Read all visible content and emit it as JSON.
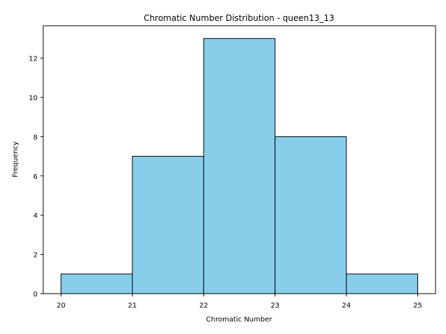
{
  "chart_data": {
    "type": "bar",
    "title": "Chromatic Number Distribution - queen13_13",
    "xlabel": "Chromatic Number",
    "ylabel": "Frequency",
    "bin_edges": [
      20,
      21,
      22,
      23,
      24,
      25
    ],
    "values": [
      1,
      7,
      13,
      8,
      1
    ],
    "xlim": [
      19.75,
      25.25
    ],
    "ylim": [
      0,
      13.65
    ],
    "xticks": [
      20,
      21,
      22,
      23,
      24,
      25
    ],
    "yticks": [
      0,
      2,
      4,
      6,
      8,
      10,
      12
    ],
    "bar_color": "#87ceeb",
    "edge_color": "#000000",
    "grid": false
  }
}
